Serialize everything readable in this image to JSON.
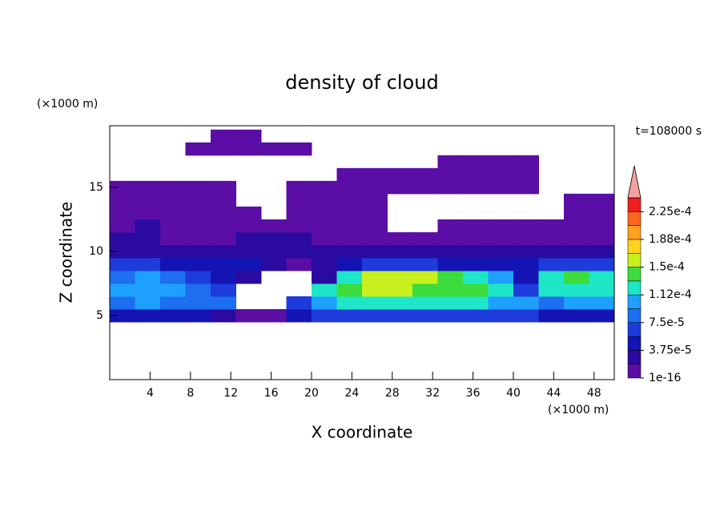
{
  "chart_data": {
    "type": "contour",
    "title": "density of cloud",
    "subtitle": "t=108000 s",
    "x_label": "X coordinate",
    "y_label": "Z coordinate",
    "x_unit": "(×1000 m)",
    "y_unit": "(×1000 m)",
    "xlim": [
      0,
      50
    ],
    "ylim": [
      0,
      19.8
    ],
    "xticks": [
      4,
      8,
      12,
      16,
      20,
      24,
      28,
      32,
      36,
      40,
      44,
      48
    ],
    "yticks": [
      5,
      10,
      15
    ],
    "xbins": [
      0,
      2.5,
      5,
      7.5,
      10,
      12.5,
      15,
      17.5,
      20,
      22.5,
      25,
      27.5,
      30,
      32.5,
      35,
      37.5,
      40,
      42.5,
      45,
      47.5,
      50
    ],
    "ybins": [
      4.5,
      5.5,
      6.5,
      7.5,
      8.5,
      9.5,
      10.5,
      11.5,
      12.5,
      13.5,
      14.5,
      15.5,
      16.5,
      17.5,
      18.5,
      19.5
    ],
    "values": [
      [
        4e-05,
        4.5e-05,
        4e-05,
        4e-05,
        3e-05,
        1e-05,
        1e-05,
        5e-05,
        6e-05,
        6e-05,
        6e-05,
        6e-05,
        6e-05,
        6e-05,
        6e-05,
        6e-05,
        6e-05,
        5e-05,
        5e-05,
        5e-05
      ],
      [
        9e-05,
        0.0001,
        9e-05,
        9e-05,
        8e-05,
        null,
        null,
        6e-05,
        0.00011,
        0.00012,
        0.00012,
        0.00012,
        0.00012,
        0.00012,
        0.00012,
        0.00011,
        0.0001,
        8e-05,
        0.0001,
        0.0001
      ],
      [
        0.00011,
        0.00011,
        0.0001,
        9e-05,
        7e-05,
        null,
        null,
        null,
        0.00013,
        0.00014,
        0.00015,
        0.00015,
        0.00014,
        0.00014,
        0.00014,
        0.00012,
        6e-05,
        0.00012,
        0.00013,
        0.00013
      ],
      [
        9e-05,
        0.0001,
        8e-05,
        6e-05,
        5e-05,
        3e-05,
        null,
        null,
        3e-05,
        0.00012,
        0.00015,
        0.00016,
        0.00016,
        0.00014,
        0.00012,
        0.0001,
        5e-05,
        0.00012,
        0.00014,
        0.00013
      ],
      [
        7e-05,
        6e-05,
        5e-05,
        5e-05,
        4e-05,
        4e-05,
        2e-05,
        1e-05,
        2e-05,
        4e-05,
        6e-05,
        6e-05,
        6e-05,
        5e-05,
        5e-05,
        5e-05,
        4e-05,
        6e-05,
        6e-05,
        6e-05
      ],
      [
        3e-05,
        3e-05,
        3e-05,
        2.5e-05,
        2.5e-05,
        3e-05,
        2.5e-05,
        2e-05,
        2e-05,
        2e-05,
        3e-05,
        3e-05,
        3e-05,
        3e-05,
        3e-05,
        3e-05,
        2.5e-05,
        2e-05,
        2e-05,
        2e-05
      ],
      [
        2e-05,
        2e-05,
        1.5e-05,
        1.5e-05,
        1e-05,
        2e-05,
        2e-05,
        2e-05,
        1e-05,
        1e-05,
        1e-05,
        1e-05,
        1e-05,
        1e-05,
        1e-05,
        1e-05,
        1e-05,
        1e-05,
        1e-05,
        1e-05
      ],
      [
        1e-05,
        2e-05,
        1.5e-05,
        1e-05,
        1e-05,
        1e-05,
        1.5e-05,
        1e-05,
        1e-05,
        5e-06,
        5e-06,
        null,
        null,
        5e-06,
        5e-06,
        5e-06,
        5e-06,
        5e-06,
        1e-05,
        5e-06
      ],
      [
        5e-06,
        1e-05,
        1e-05,
        5e-06,
        5e-06,
        5e-06,
        null,
        5e-06,
        5e-06,
        5e-06,
        5e-06,
        null,
        null,
        null,
        null,
        null,
        null,
        null,
        5e-06,
        5e-06
      ],
      [
        5e-06,
        5e-06,
        5e-06,
        5e-06,
        5e-06,
        null,
        null,
        5e-06,
        5e-06,
        5e-06,
        5e-06,
        null,
        null,
        null,
        null,
        null,
        null,
        null,
        5e-06,
        5e-06
      ],
      [
        5e-06,
        5e-06,
        5e-06,
        5e-06,
        5e-06,
        null,
        null,
        5e-06,
        5e-06,
        5e-06,
        5e-06,
        5e-06,
        5e-06,
        5e-06,
        5e-06,
        5e-06,
        5e-06,
        null,
        null,
        null
      ],
      [
        null,
        null,
        null,
        null,
        null,
        null,
        null,
        null,
        null,
        5e-06,
        5e-06,
        5e-06,
        5e-06,
        5e-06,
        5e-06,
        5e-06,
        5e-06,
        null,
        null,
        null
      ],
      [
        null,
        null,
        null,
        null,
        null,
        null,
        null,
        null,
        null,
        null,
        null,
        null,
        null,
        5e-06,
        5e-06,
        5e-06,
        5e-06,
        null,
        null,
        null
      ],
      [
        null,
        null,
        null,
        5e-06,
        5e-06,
        5e-06,
        5e-06,
        5e-06,
        null,
        null,
        null,
        null,
        null,
        null,
        null,
        null,
        null,
        null,
        null,
        null
      ],
      [
        null,
        null,
        null,
        null,
        5e-06,
        5e-06,
        null,
        null,
        null,
        null,
        null,
        null,
        null,
        null,
        null,
        null,
        null,
        null,
        null,
        null
      ]
    ],
    "colorbar": {
      "levels": [
        1e-16,
        1.875e-05,
        3.75e-05,
        5.625e-05,
        7.5e-05,
        9.375e-05,
        0.0001125,
        0.00013125,
        0.00015,
        0.00016875,
        0.0001875,
        0.00020625,
        0.000225,
        0.00024375
      ],
      "colors": [
        "#5a0ea5",
        "#2a0aa0",
        "#1414b4",
        "#1e3cdc",
        "#1e6ef0",
        "#1ea0ff",
        "#1ee6c8",
        "#3cdc3c",
        "#c8f01e",
        "#ffd21e",
        "#ffa01e",
        "#ff641e",
        "#f01e1e"
      ],
      "extend_color": "#f5a0a0",
      "ticks": [
        {
          "value": 1e-16,
          "label": "1e-16"
        },
        {
          "value": 3.75e-05,
          "label": "3.75e-5"
        },
        {
          "value": 7.5e-05,
          "label": "7.5e-5"
        },
        {
          "value": 0.0001125,
          "label": "1.12e-4"
        },
        {
          "value": 0.00015,
          "label": "1.5e-4"
        },
        {
          "value": 0.0001875,
          "label": "1.88e-4"
        },
        {
          "value": 0.000225,
          "label": "2.25e-4"
        }
      ]
    }
  }
}
